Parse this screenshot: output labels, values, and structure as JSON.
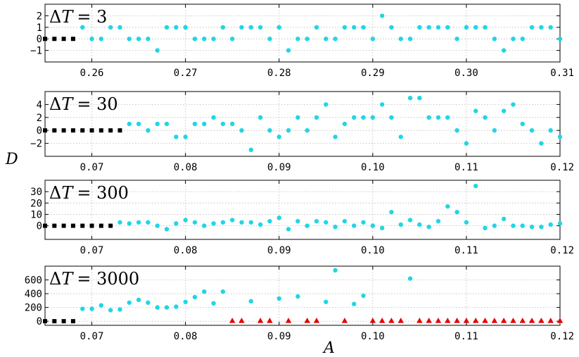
{
  "figure": {
    "xlabel": "A",
    "ylabel": "D"
  },
  "colors": {
    "cyan": "#1fd6e6",
    "black": "#000000",
    "red": "#e60000"
  },
  "chart_data": [
    {
      "type": "scatter",
      "title": "ΔT = 3",
      "title_main": "ΔT",
      "title_eq": "= 3",
      "xlim": [
        0.255,
        0.31
      ],
      "ylim": [
        -2,
        3
      ],
      "xticks": [
        0.26,
        0.27,
        0.28,
        0.29,
        0.3,
        0.31
      ],
      "xtick_labels": [
        "0.26",
        "0.27",
        "0.28",
        "0.29",
        "0.30",
        "0.31"
      ],
      "yticks": [
        -1,
        0,
        1,
        2
      ],
      "ytick_labels": [
        "−1",
        "0",
        "1",
        "2"
      ],
      "grid": true,
      "series": [
        {
          "marker": "square",
          "color": "#000000",
          "x": [
            0.255,
            0.256,
            0.257,
            0.258
          ],
          "y": [
            0,
            0,
            0,
            0
          ]
        },
        {
          "marker": "circle",
          "color": "#1fd6e6",
          "x": [
            0.259,
            0.26,
            0.261,
            0.262,
            0.263,
            0.264,
            0.265,
            0.266,
            0.267,
            0.268,
            0.269,
            0.27,
            0.271,
            0.272,
            0.273,
            0.274,
            0.275,
            0.276,
            0.277,
            0.278,
            0.279,
            0.28,
            0.281,
            0.282,
            0.283,
            0.284,
            0.285,
            0.286,
            0.287,
            0.288,
            0.289,
            0.29,
            0.291,
            0.292,
            0.293,
            0.294,
            0.295,
            0.296,
            0.297,
            0.298,
            0.299,
            0.3,
            0.301,
            0.302,
            0.303,
            0.304,
            0.305,
            0.306,
            0.307,
            0.308,
            0.309,
            0.31
          ],
          "y": [
            1,
            0,
            0,
            1,
            1,
            0,
            0,
            0,
            -1,
            1,
            1,
            1,
            0,
            0,
            0,
            1,
            0,
            1,
            1,
            1,
            0,
            1,
            -1,
            0,
            0,
            1,
            0,
            0,
            1,
            1,
            1,
            0,
            2,
            1,
            0,
            0,
            1,
            1,
            1,
            1,
            0,
            1,
            1,
            1,
            0,
            -1,
            0,
            0,
            1,
            1,
            1,
            0
          ]
        }
      ]
    },
    {
      "type": "scatter",
      "title": "ΔT = 30",
      "title_main": "ΔT",
      "title_eq": "= 30",
      "xlim": [
        0.065,
        0.12
      ],
      "ylim": [
        -4,
        6
      ],
      "xticks": [
        0.07,
        0.08,
        0.09,
        0.1,
        0.11,
        0.12
      ],
      "xtick_labels": [
        "0.07",
        "0.08",
        "0.09",
        "0.10",
        "0.11",
        "0.12"
      ],
      "yticks": [
        -2,
        0,
        2,
        4
      ],
      "ytick_labels": [
        "−2",
        "0",
        "2",
        "4"
      ],
      "grid": true,
      "series": [
        {
          "marker": "square",
          "color": "#000000",
          "x": [
            0.065,
            0.066,
            0.067,
            0.068,
            0.069,
            0.07,
            0.071,
            0.072,
            0.073
          ],
          "y": [
            0,
            0,
            0,
            0,
            0,
            0,
            0,
            0,
            0
          ]
        },
        {
          "marker": "circle",
          "color": "#1fd6e6",
          "x": [
            0.074,
            0.075,
            0.076,
            0.077,
            0.078,
            0.079,
            0.08,
            0.081,
            0.082,
            0.083,
            0.084,
            0.085,
            0.086,
            0.087,
            0.088,
            0.089,
            0.09,
            0.091,
            0.092,
            0.093,
            0.094,
            0.095,
            0.096,
            0.097,
            0.098,
            0.099,
            0.1,
            0.101,
            0.102,
            0.103,
            0.104,
            0.105,
            0.106,
            0.107,
            0.108,
            0.109,
            0.11,
            0.111,
            0.112,
            0.113,
            0.114,
            0.115,
            0.116,
            0.117,
            0.118,
            0.119,
            0.12
          ],
          "y": [
            1,
            1,
            0,
            1,
            1,
            -1,
            -1,
            1,
            1,
            2,
            1,
            1,
            0,
            -3,
            2,
            0,
            -1,
            0,
            2,
            0,
            2,
            4,
            -1,
            1,
            2,
            2,
            2,
            4,
            2,
            -1,
            5,
            5,
            2,
            2,
            2,
            0,
            -2,
            3,
            2,
            0,
            3,
            4,
            1,
            0,
            -2,
            0,
            -1
          ]
        }
      ]
    },
    {
      "type": "scatter",
      "title": "ΔT = 300",
      "title_main": "ΔT",
      "title_eq": "= 300",
      "xlim": [
        0.065,
        0.12
      ],
      "ylim": [
        -12,
        40
      ],
      "xticks": [
        0.07,
        0.08,
        0.09,
        0.1,
        0.11,
        0.12
      ],
      "xtick_labels": [
        "0.07",
        "0.08",
        "0.09",
        "0.10",
        "0.11",
        "0.12"
      ],
      "yticks": [
        0,
        10,
        20,
        30
      ],
      "ytick_labels": [
        "0",
        "10",
        "20",
        "30"
      ],
      "grid": true,
      "series": [
        {
          "marker": "square",
          "color": "#000000",
          "x": [
            0.065,
            0.066,
            0.067,
            0.068,
            0.069,
            0.07,
            0.071,
            0.072
          ],
          "y": [
            0,
            0,
            0,
            0,
            0,
            0,
            0,
            0
          ]
        },
        {
          "marker": "circle",
          "color": "#1fd6e6",
          "x": [
            0.073,
            0.074,
            0.075,
            0.076,
            0.077,
            0.078,
            0.079,
            0.08,
            0.081,
            0.082,
            0.083,
            0.084,
            0.085,
            0.086,
            0.087,
            0.088,
            0.089,
            0.09,
            0.091,
            0.092,
            0.093,
            0.094,
            0.095,
            0.096,
            0.097,
            0.098,
            0.099,
            0.1,
            0.101,
            0.102,
            0.103,
            0.104,
            0.105,
            0.106,
            0.107,
            0.108,
            0.109,
            0.11,
            0.111,
            0.112,
            0.113,
            0.114,
            0.115,
            0.116,
            0.117,
            0.118,
            0.119,
            0.12
          ],
          "y": [
            3,
            2,
            3,
            3,
            0,
            -3,
            2,
            5,
            3,
            0,
            2,
            3,
            5,
            3,
            3,
            1,
            4,
            7,
            -3,
            4,
            0,
            4,
            3,
            -1,
            4,
            0,
            3,
            0,
            -2,
            12,
            1,
            5,
            1,
            -1,
            4,
            17,
            12,
            3,
            35,
            -2,
            0,
            6,
            0,
            0,
            -1,
            -1,
            1,
            2
          ]
        }
      ]
    },
    {
      "type": "scatter",
      "title": "ΔT = 3000",
      "title_main": "ΔT",
      "title_eq": "= 3000",
      "xlim": [
        0.065,
        0.12
      ],
      "ylim": [
        -60,
        800
      ],
      "xticks": [
        0.07,
        0.08,
        0.09,
        0.1,
        0.11,
        0.12
      ],
      "xtick_labels": [
        "0.07",
        "0.08",
        "0.09",
        "0.10",
        "0.11",
        "0.12"
      ],
      "yticks": [
        0,
        200,
        400,
        600
      ],
      "ytick_labels": [
        "0",
        "200",
        "400",
        "600"
      ],
      "grid": true,
      "series": [
        {
          "marker": "square",
          "color": "#000000",
          "x": [
            0.065,
            0.066,
            0.067,
            0.068
          ],
          "y": [
            0,
            0,
            0,
            0
          ]
        },
        {
          "marker": "circle",
          "color": "#1fd6e6",
          "x": [
            0.069,
            0.07,
            0.071,
            0.072,
            0.073,
            0.074,
            0.075,
            0.076,
            0.077,
            0.078,
            0.079,
            0.08,
            0.081,
            0.082,
            0.083,
            0.084,
            0.087,
            0.09,
            0.092,
            0.095,
            0.096,
            0.098,
            0.099,
            0.104
          ],
          "y": [
            180,
            180,
            230,
            160,
            170,
            270,
            310,
            270,
            200,
            200,
            210,
            280,
            350,
            430,
            260,
            430,
            290,
            330,
            360,
            280,
            740,
            250,
            370,
            620
          ]
        },
        {
          "marker": "triangle",
          "color": "#e60000",
          "x": [
            0.085,
            0.086,
            0.088,
            0.089,
            0.091,
            0.093,
            0.094,
            0.097,
            0.1,
            0.101,
            0.102,
            0.103,
            0.105,
            0.106,
            0.107,
            0.108,
            0.109,
            0.11,
            0.111,
            0.112,
            0.113,
            0.114,
            0.115,
            0.116,
            0.117,
            0.118,
            0.119,
            0.12
          ],
          "y": [
            0,
            0,
            0,
            0,
            0,
            0,
            0,
            0,
            0,
            0,
            0,
            0,
            0,
            0,
            0,
            0,
            0,
            0,
            0,
            0,
            0,
            0,
            0,
            0,
            0,
            0,
            0,
            0
          ]
        }
      ]
    }
  ]
}
